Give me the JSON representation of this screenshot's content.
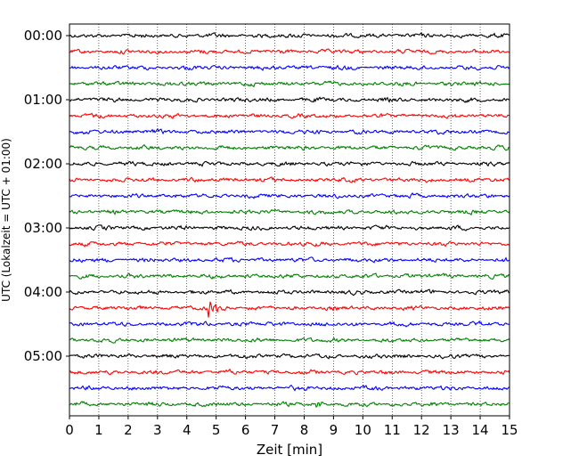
{
  "chart_data": {
    "type": "line",
    "title": "",
    "xlabel": "Zeit  [min]",
    "ylabel": "UTC (Lokalzeit = UTC + 01:00)",
    "xlim": [
      0,
      15
    ],
    "x_ticks": [
      "0",
      "1",
      "2",
      "3",
      "4",
      "5",
      "6",
      "7",
      "8",
      "9",
      "10",
      "11",
      "12",
      "13",
      "14",
      "15"
    ],
    "row_labels": [
      "00:00",
      "01:00",
      "02:00",
      "03:00",
      "04:00",
      "05:00"
    ],
    "grid": "vertical dotted",
    "legend": "none",
    "row_interval_minutes": 15,
    "rows": 24,
    "color_cycle": [
      "#000000",
      "#ff0000",
      "#0000ff",
      "#008000"
    ],
    "events": [
      {
        "row_start": "04:15",
        "minute": 4.7,
        "description": "large transient, red trace"
      },
      {
        "row_start": "05:45",
        "minute": 8.4,
        "description": "small transient, green trace"
      }
    ]
  }
}
